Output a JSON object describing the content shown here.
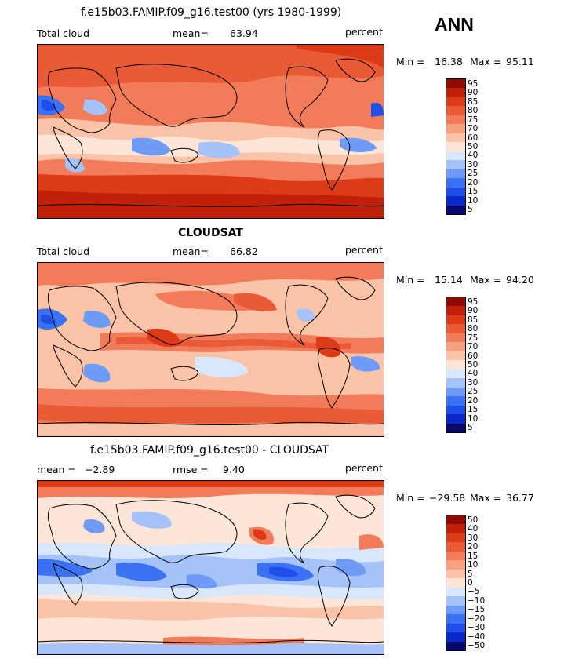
{
  "season": "ANN",
  "colors": {
    "abs_scale": [
      "#08086b",
      "#0b28c8",
      "#1f4fe8",
      "#3b72f3",
      "#6e9bf5",
      "#a5c3f9",
      "#d9e7fc",
      "#fde5d8",
      "#fbc3a8",
      "#f7a07e",
      "#f27c5a",
      "#ea5a37",
      "#dd3b18",
      "#c02008",
      "#8e0a02"
    ],
    "diff_scale": [
      "#08086b",
      "#0b28c8",
      "#1f4fe8",
      "#3b72f3",
      "#6e9bf5",
      "#a5c3f9",
      "#d9e7fc",
      "#fde5d8",
      "#fbc3a8",
      "#f7a07e",
      "#f27c5a",
      "#ea5a37",
      "#dd3b18",
      "#c02008",
      "#8e0a02"
    ]
  },
  "panels": [
    {
      "title": "f.e15b03.FAMIP.f09_g16.test00 (yrs 1980-1999)",
      "left_label": "Total cloud",
      "mean_label": "mean=",
      "mean_value": "63.94",
      "units": "percent",
      "min_label": "Min =",
      "min_value": "16.38",
      "max_label": "Max =",
      "max_value": "95.11",
      "ticks": [
        "95",
        "90",
        "85",
        "80",
        "75",
        "70",
        "60",
        "50",
        "40",
        "30",
        "25",
        "20",
        "15",
        "10",
        "5"
      ]
    },
    {
      "title": "CLOUDSAT",
      "left_label": "Total cloud",
      "mean_label": "mean=",
      "mean_value": "66.82",
      "units": "percent",
      "min_label": "Min =",
      "min_value": "15.14",
      "max_label": "Max =",
      "max_value": "94.20",
      "ticks": [
        "95",
        "90",
        "85",
        "80",
        "75",
        "70",
        "60",
        "50",
        "40",
        "30",
        "25",
        "20",
        "15",
        "10",
        "5"
      ]
    },
    {
      "title": "f.e15b03.FAMIP.f09_g16.test00 - CLOUDSAT",
      "left_label": "mean =",
      "mean_label": "rmse =",
      "left_value": "−2.89",
      "mean_value": "9.40",
      "units": "percent",
      "min_label": "Min =",
      "min_value": "−29.58",
      "max_label": "Max =",
      "max_value": "36.77",
      "ticks": [
        "50",
        "40",
        "30",
        "20",
        "15",
        "10",
        "5",
        "0",
        "−5",
        "−10",
        "−15",
        "−20",
        "−30",
        "−40",
        "−50"
      ]
    }
  ]
}
